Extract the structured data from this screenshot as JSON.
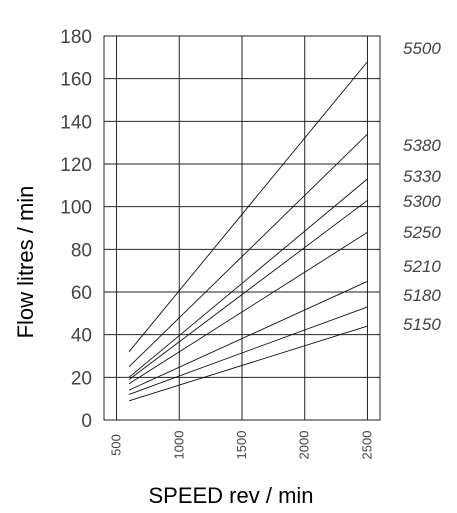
{
  "chart_data": {
    "type": "line",
    "title": "",
    "xlabel": "SPEED rev / min",
    "ylabel": "Flow litres / min",
    "xlim": [
      400,
      2600
    ],
    "ylim": [
      0,
      180
    ],
    "x_ticks": [
      "500",
      "1000",
      "1500",
      "2000",
      "2500"
    ],
    "y_ticks": [
      "0",
      "20",
      "40",
      "60",
      "80",
      "100",
      "120",
      "140",
      "160",
      "180"
    ],
    "grid": true,
    "series": [
      {
        "name": "5500",
        "x": [
          600,
          2500
        ],
        "y": [
          32,
          168
        ]
      },
      {
        "name": "5380",
        "x": [
          600,
          2500
        ],
        "y": [
          25,
          134
        ]
      },
      {
        "name": "5330",
        "x": [
          600,
          2500
        ],
        "y": [
          20,
          113
        ]
      },
      {
        "name": "5300",
        "x": [
          600,
          2500
        ],
        "y": [
          19,
          103
        ]
      },
      {
        "name": "5250",
        "x": [
          600,
          2500
        ],
        "y": [
          17,
          88
        ]
      },
      {
        "name": "5210",
        "x": [
          600,
          2500
        ],
        "y": [
          14,
          65
        ]
      },
      {
        "name": "5180",
        "x": [
          600,
          2500
        ],
        "y": [
          12,
          53
        ]
      },
      {
        "name": "5150",
        "x": [
          600,
          2500
        ],
        "y": [
          9,
          44
        ]
      }
    ]
  }
}
